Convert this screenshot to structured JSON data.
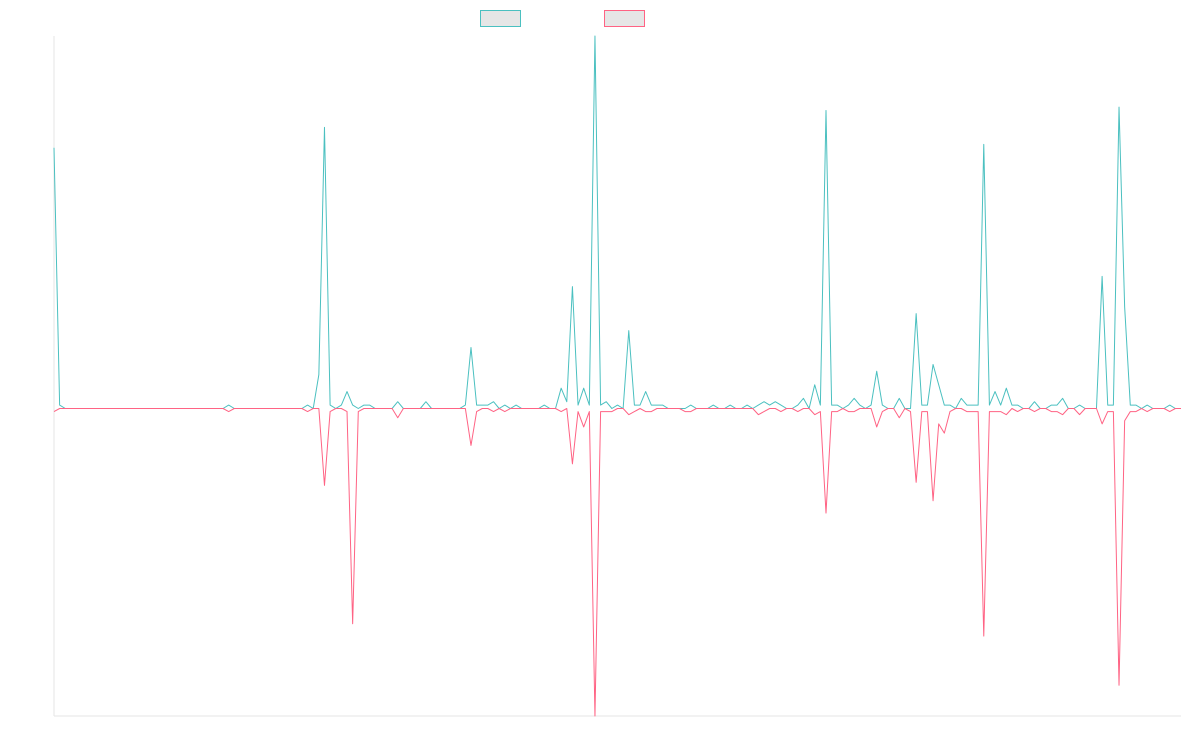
{
  "chart_data": {
    "type": "line",
    "title": "",
    "xlabel": "",
    "ylabel": "",
    "grid": false,
    "legend_position": "top-center",
    "x_count": 201,
    "ylim": [
      -1,
      1.1
    ],
    "series": [
      {
        "name": "",
        "color": "#4bc0c0",
        "direction": "up",
        "peaks": [
          [
            0,
            0.77
          ],
          [
            1,
            0.01
          ],
          [
            31,
            0.01
          ],
          [
            45,
            0.01
          ],
          [
            47,
            0.1
          ],
          [
            48,
            0.83
          ],
          [
            49,
            0.01
          ],
          [
            51,
            0.01
          ],
          [
            52,
            0.05
          ],
          [
            53,
            0.01
          ],
          [
            55,
            0.01
          ],
          [
            56,
            0.01
          ],
          [
            61,
            0.02
          ],
          [
            66,
            0.02
          ],
          [
            73,
            0.01
          ],
          [
            74,
            0.18
          ],
          [
            75,
            0.01
          ],
          [
            76,
            0.01
          ],
          [
            77,
            0.01
          ],
          [
            78,
            0.02
          ],
          [
            80,
            0.01
          ],
          [
            82,
            0.01
          ],
          [
            87,
            0.01
          ],
          [
            90,
            0.06
          ],
          [
            91,
            0.02
          ],
          [
            92,
            0.36
          ],
          [
            93,
            0.01
          ],
          [
            94,
            0.06
          ],
          [
            95,
            0.01
          ],
          [
            96,
            1.1
          ],
          [
            97,
            0.01
          ],
          [
            98,
            0.02
          ],
          [
            100,
            0.01
          ],
          [
            102,
            0.23
          ],
          [
            103,
            0.01
          ],
          [
            104,
            0.01
          ],
          [
            105,
            0.05
          ],
          [
            106,
            0.01
          ],
          [
            107,
            0.01
          ],
          [
            108,
            0.01
          ],
          [
            113,
            0.01
          ],
          [
            117,
            0.01
          ],
          [
            120,
            0.01
          ],
          [
            123,
            0.01
          ],
          [
            125,
            0.01
          ],
          [
            126,
            0.02
          ],
          [
            127,
            0.01
          ],
          [
            128,
            0.02
          ],
          [
            129,
            0.01
          ],
          [
            132,
            0.01
          ],
          [
            133,
            0.03
          ],
          [
            135,
            0.07
          ],
          [
            136,
            0.01
          ],
          [
            137,
            0.88
          ],
          [
            138,
            0.01
          ],
          [
            139,
            0.01
          ],
          [
            141,
            0.01
          ],
          [
            142,
            0.03
          ],
          [
            143,
            0.01
          ],
          [
            145,
            0.01
          ],
          [
            146,
            0.11
          ],
          [
            147,
            0.01
          ],
          [
            150,
            0.03
          ],
          [
            153,
            0.28
          ],
          [
            154,
            0.01
          ],
          [
            155,
            0.01
          ],
          [
            156,
            0.13
          ],
          [
            157,
            0.07
          ],
          [
            158,
            0.01
          ],
          [
            159,
            0.01
          ],
          [
            161,
            0.03
          ],
          [
            162,
            0.01
          ],
          [
            163,
            0.01
          ],
          [
            164,
            0.01
          ],
          [
            165,
            0.78
          ],
          [
            166,
            0.01
          ],
          [
            167,
            0.05
          ],
          [
            168,
            0.01
          ],
          [
            169,
            0.06
          ],
          [
            170,
            0.01
          ],
          [
            171,
            0.01
          ],
          [
            174,
            0.02
          ],
          [
            177,
            0.01
          ],
          [
            178,
            0.01
          ],
          [
            179,
            0.03
          ],
          [
            182,
            0.01
          ],
          [
            186,
            0.39
          ],
          [
            187,
            0.01
          ],
          [
            188,
            0.01
          ],
          [
            189,
            0.89
          ],
          [
            190,
            0.3
          ],
          [
            191,
            0.01
          ],
          [
            192,
            0.01
          ],
          [
            194,
            0.01
          ],
          [
            198,
            0.01
          ]
        ]
      },
      {
        "name": "",
        "color": "#ff6384",
        "direction": "down",
        "peaks": [
          [
            0,
            0.01
          ],
          [
            31,
            0.01
          ],
          [
            45,
            0.01
          ],
          [
            48,
            0.25
          ],
          [
            49,
            0.01
          ],
          [
            52,
            0.01
          ],
          [
            53,
            0.7
          ],
          [
            54,
            0.01
          ],
          [
            61,
            0.03
          ],
          [
            74,
            0.12
          ],
          [
            75,
            0.01
          ],
          [
            78,
            0.01
          ],
          [
            80,
            0.01
          ],
          [
            90,
            0.01
          ],
          [
            92,
            0.18
          ],
          [
            93,
            0.01
          ],
          [
            94,
            0.06
          ],
          [
            95,
            0.01
          ],
          [
            96,
            1.0
          ],
          [
            97,
            0.01
          ],
          [
            98,
            0.01
          ],
          [
            99,
            0.01
          ],
          [
            102,
            0.02
          ],
          [
            103,
            0.01
          ],
          [
            105,
            0.01
          ],
          [
            106,
            0.01
          ],
          [
            112,
            0.01
          ],
          [
            113,
            0.01
          ],
          [
            125,
            0.02
          ],
          [
            126,
            0.01
          ],
          [
            129,
            0.01
          ],
          [
            132,
            0.01
          ],
          [
            135,
            0.02
          ],
          [
            136,
            0.01
          ],
          [
            137,
            0.34
          ],
          [
            138,
            0.01
          ],
          [
            139,
            0.01
          ],
          [
            141,
            0.01
          ],
          [
            142,
            0.01
          ],
          [
            146,
            0.06
          ],
          [
            147,
            0.01
          ],
          [
            150,
            0.03
          ],
          [
            152,
            0.01
          ],
          [
            153,
            0.24
          ],
          [
            154,
            0.01
          ],
          [
            155,
            0.01
          ],
          [
            156,
            0.3
          ],
          [
            157,
            0.05
          ],
          [
            158,
            0.08
          ],
          [
            159,
            0.01
          ],
          [
            162,
            0.01
          ],
          [
            163,
            0.01
          ],
          [
            164,
            0.01
          ],
          [
            165,
            0.74
          ],
          [
            166,
            0.01
          ],
          [
            167,
            0.01
          ],
          [
            168,
            0.01
          ],
          [
            169,
            0.02
          ],
          [
            171,
            0.01
          ],
          [
            174,
            0.01
          ],
          [
            177,
            0.01
          ],
          [
            178,
            0.01
          ],
          [
            179,
            0.02
          ],
          [
            182,
            0.02
          ],
          [
            186,
            0.05
          ],
          [
            187,
            0.01
          ],
          [
            188,
            0.01
          ],
          [
            189,
            0.9
          ],
          [
            190,
            0.04
          ],
          [
            191,
            0.01
          ],
          [
            192,
            0.01
          ],
          [
            194,
            0.01
          ],
          [
            198,
            0.01
          ]
        ]
      }
    ]
  }
}
